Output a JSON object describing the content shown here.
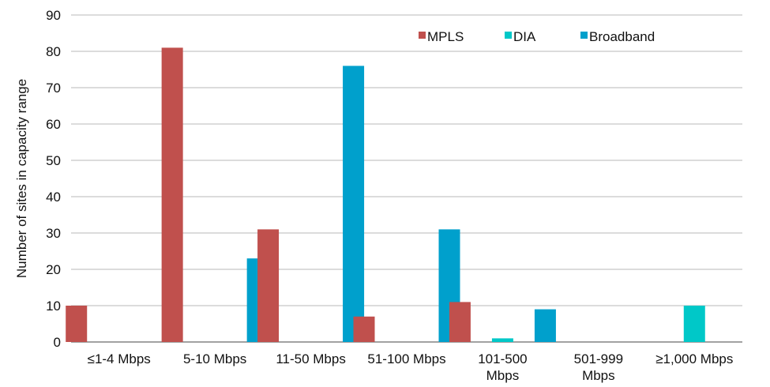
{
  "chart_data": {
    "type": "bar",
    "title": "",
    "xlabel": "",
    "ylabel": "Number of sites in capacity range",
    "ylim": [
      0,
      90
    ],
    "yticks": [
      0,
      10,
      20,
      30,
      40,
      50,
      60,
      70,
      80,
      90
    ],
    "grid": true,
    "legend_position": "top-right",
    "categories": [
      [
        "≤1-4 Mbps"
      ],
      [
        "5-10 Mbps"
      ],
      [
        "11-50 Mbps"
      ],
      [
        "51-100 Mbps"
      ],
      [
        "101-500",
        "Mbps"
      ],
      [
        "501-999",
        "Mbps"
      ],
      [
        "≥1,000 Mbps"
      ]
    ],
    "series": [
      {
        "name": "MPLS",
        "color": "#c0504d",
        "values": [
          10,
          81,
          31,
          7,
          11,
          0,
          0
        ]
      },
      {
        "name": "DIA",
        "color": "#00c8c8",
        "values": [
          0,
          0,
          0,
          0,
          1,
          0,
          10
        ]
      },
      {
        "name": "Broadband",
        "color": "#00a0cc",
        "values": [
          0,
          23,
          76,
          31,
          9,
          0,
          0
        ]
      }
    ]
  }
}
